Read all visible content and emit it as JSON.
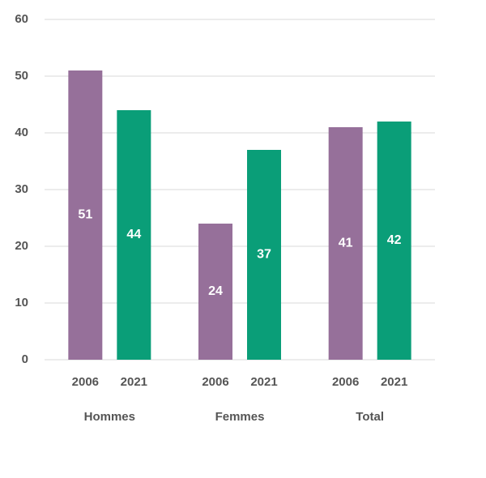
{
  "chart_data": {
    "type": "bar",
    "categories": [
      "Hommes",
      "Femmes",
      "Total"
    ],
    "series": [
      {
        "name": "2006",
        "color": "#96709a",
        "values": [
          51,
          24,
          41
        ]
      },
      {
        "name": "2021",
        "color": "#0a9e78",
        "values": [
          44,
          37,
          42
        ]
      }
    ],
    "ylim": [
      0,
      60
    ],
    "yticks": [
      0,
      10,
      20,
      30,
      40,
      50,
      60
    ],
    "grid": true
  }
}
